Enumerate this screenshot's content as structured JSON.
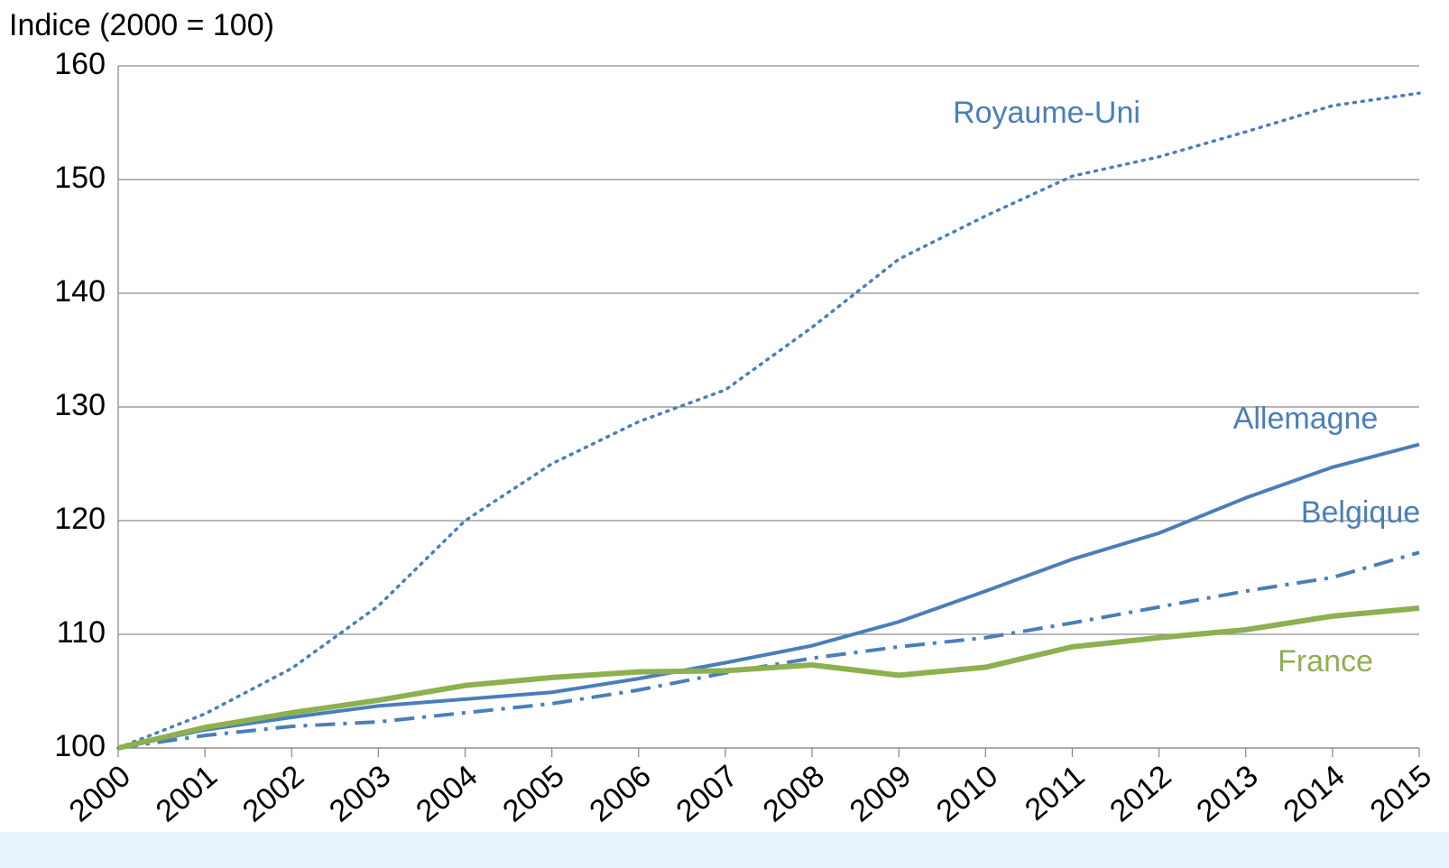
{
  "chart_data": {
    "type": "line",
    "y_label": "Indice (2000 = 100)",
    "categories": [
      "2000",
      "2001",
      "2002",
      "2003",
      "2004",
      "2005",
      "2006",
      "2007",
      "2008",
      "2009",
      "2010",
      "2011",
      "2012",
      "2013",
      "2014",
      "2015"
    ],
    "series": [
      {
        "name": "Royaume-Uni",
        "color": "#4a7ebb",
        "line_style": "dotted",
        "values": [
          100,
          103,
          107,
          112.5,
          120,
          125,
          128.7,
          131.5,
          137,
          143,
          146.8,
          150.3,
          152,
          154.2,
          156.5,
          157.6
        ]
      },
      {
        "name": "Allemagne",
        "color": "#4a7ebb",
        "line_style": "solid",
        "values": [
          100,
          101.6,
          102.7,
          103.7,
          104.3,
          104.9,
          106.1,
          107.5,
          109,
          111.1,
          113.8,
          116.6,
          118.9,
          122,
          124.7,
          126.7
        ]
      },
      {
        "name": "Belgique",
        "color": "#4a7ebb",
        "line_style": "dashdot",
        "values": [
          100,
          101.1,
          101.9,
          102.3,
          103.1,
          103.9,
          105.1,
          106.6,
          107.9,
          108.9,
          109.7,
          111,
          112.4,
          113.8,
          115,
          117.2
        ]
      },
      {
        "name": "France",
        "color": "#8db050",
        "line_style": "thick",
        "values": [
          100,
          101.8,
          103.1,
          104.2,
          105.5,
          106.2,
          106.7,
          106.8,
          107.3,
          106.4,
          107.1,
          108.9,
          109.7,
          110.4,
          111.6,
          112.3
        ]
      }
    ],
    "ylim": [
      100,
      160
    ],
    "yticks": [
      100,
      110,
      120,
      130,
      140,
      150,
      160
    ],
    "grid": true
  }
}
